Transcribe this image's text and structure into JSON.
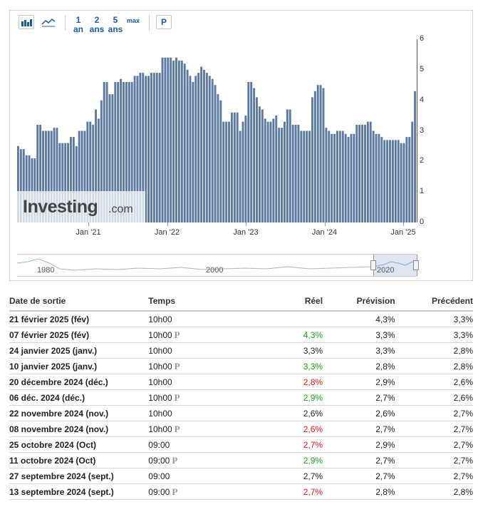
{
  "toolbar": {
    "ranges": [
      {
        "top": "1",
        "bottom": "an"
      },
      {
        "top": "2",
        "bottom": "ans"
      },
      {
        "top": "5",
        "bottom": "ans"
      }
    ],
    "max_label": "max",
    "p_label": "P"
  },
  "chart_data": {
    "type": "bar",
    "color": "#5b7aa0",
    "yticks": [
      "0",
      "1",
      "2",
      "3",
      "4",
      "5",
      "6"
    ],
    "ylim": [
      0,
      6
    ],
    "xticks": [
      "Jan '21",
      "Jan '22",
      "Jan '23",
      "Jan '24",
      "Jan '25"
    ],
    "values": [
      2.5,
      2.4,
      2.4,
      2.2,
      2.2,
      2.1,
      2.1,
      3.2,
      3.2,
      3.0,
      3.0,
      3.0,
      3.0,
      3.1,
      3.1,
      2.6,
      2.6,
      2.6,
      2.6,
      2.8,
      2.8,
      2.5,
      3.0,
      3.0,
      3.0,
      3.3,
      3.3,
      3.2,
      3.7,
      3.4,
      4.0,
      4.6,
      4.6,
      4.2,
      4.2,
      4.6,
      4.6,
      4.7,
      4.6,
      4.6,
      4.6,
      4.6,
      4.8,
      4.8,
      4.9,
      4.9,
      4.8,
      4.8,
      4.9,
      4.9,
      4.9,
      4.9,
      5.4,
      5.4,
      5.4,
      5.4,
      5.3,
      5.4,
      5.3,
      5.3,
      5.2,
      5.0,
      4.8,
      4.6,
      4.8,
      4.9,
      5.1,
      5.0,
      4.9,
      4.8,
      4.7,
      4.5,
      4.2,
      4.0,
      3.3,
      3.3,
      3.3,
      3.6,
      3.6,
      3.6,
      3.0,
      3.3,
      3.5,
      4.6,
      4.6,
      4.4,
      4.1,
      3.8,
      3.7,
      3.4,
      3.3,
      3.3,
      3.4,
      3.5,
      3.1,
      3.1,
      3.3,
      3.7,
      3.7,
      3.2,
      3.2,
      3.2,
      3.0,
      3.0,
      3.0,
      3.0,
      4.1,
      4.3,
      4.5,
      4.5,
      4.4,
      3.1,
      3.0,
      2.9,
      2.9,
      3.0,
      3.0,
      3.0,
      2.9,
      2.8,
      2.9,
      2.9,
      3.2,
      3.2,
      3.2,
      3.2,
      3.3,
      3.3,
      3.0,
      2.9,
      2.9,
      2.8,
      2.7,
      2.7,
      2.7,
      2.7,
      2.7,
      2.7,
      2.6,
      2.6,
      2.8,
      2.8,
      3.3,
      4.3
    ]
  },
  "navigator": {
    "labels": [
      "1980",
      "2000",
      "2020"
    ]
  },
  "watermark": {
    "brand": "Investing",
    "suffix": ".com"
  },
  "table": {
    "headers": {
      "date": "Date de sortie",
      "time": "Temps",
      "actual": "Réel",
      "forecast": "Prévision",
      "previous": "Précédent"
    },
    "rows": [
      {
        "date": "21 février 2025 (fév)",
        "time": "10h00",
        "prelim": "",
        "actual": "",
        "actual_color": "",
        "forecast": "4,3%",
        "previous": "3,3%"
      },
      {
        "date": "07 février 2025 (fév)",
        "time": "10h00",
        "prelim": "P",
        "actual": "4,3%",
        "actual_color": "green",
        "forecast": "3,3%",
        "previous": "3,3%"
      },
      {
        "date": "24 janvier 2025 (janv.)",
        "time": "10h00",
        "prelim": "",
        "actual": "3,3%",
        "actual_color": "",
        "forecast": "3,3%",
        "previous": "2,8%"
      },
      {
        "date": "10 janvier 2025 (janv.)",
        "time": "10h00",
        "prelim": "P",
        "actual": "3,3%",
        "actual_color": "green",
        "forecast": "2,8%",
        "previous": "2,8%"
      },
      {
        "date": "20 décembre 2024 (déc.)",
        "time": "10h00",
        "prelim": "",
        "actual": "2,8%",
        "actual_color": "red",
        "forecast": "2,9%",
        "previous": "2,6%"
      },
      {
        "date": "06 déc. 2024 (déc.)",
        "time": "10h00",
        "prelim": "P",
        "actual": "2,9%",
        "actual_color": "green",
        "forecast": "2,7%",
        "previous": "2,6%"
      },
      {
        "date": "22 novembre 2024 (nov.)",
        "time": "10h00",
        "prelim": "",
        "actual": "2,6%",
        "actual_color": "",
        "forecast": "2,6%",
        "previous": "2,7%"
      },
      {
        "date": "08 novembre 2024 (nov.)",
        "time": "10h00",
        "prelim": "P",
        "actual": "2,6%",
        "actual_color": "red",
        "forecast": "2,7%",
        "previous": "2,7%"
      },
      {
        "date": "25 octobre 2024 (Oct)",
        "time": "09:00",
        "prelim": "",
        "actual": "2,7%",
        "actual_color": "red",
        "forecast": "2,9%",
        "previous": "2,7%"
      },
      {
        "date": "11 octobre 2024 (Oct)",
        "time": "09:00",
        "prelim": "P",
        "actual": "2,9%",
        "actual_color": "green",
        "forecast": "2,7%",
        "previous": "2,7%"
      },
      {
        "date": "27 septembre 2024 (sept.)",
        "time": "09:00",
        "prelim": "",
        "actual": "2,7%",
        "actual_color": "",
        "forecast": "2,7%",
        "previous": "2,7%"
      },
      {
        "date": "13 septembre 2024 (sept.)",
        "time": "09:00",
        "prelim": "P",
        "actual": "2,7%",
        "actual_color": "red",
        "forecast": "2,8%",
        "previous": "2,8%"
      }
    ]
  }
}
